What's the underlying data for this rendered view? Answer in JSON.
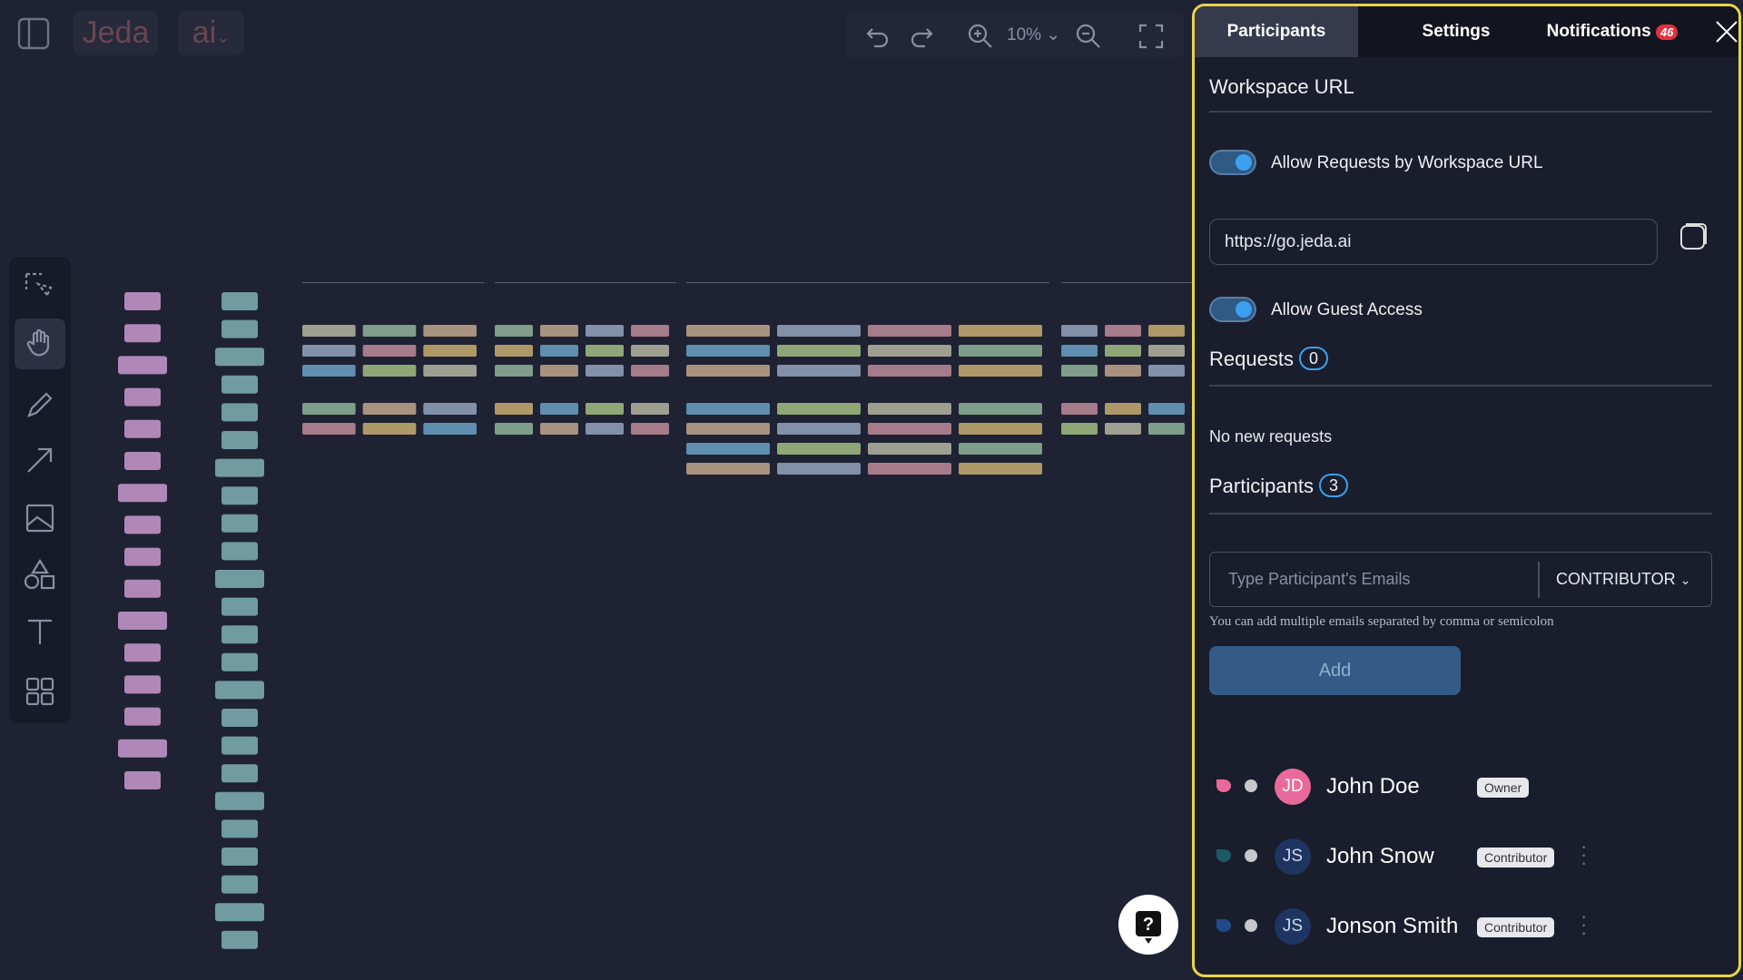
{
  "topbar": {
    "logo": "Jeda",
    "ai": "ai",
    "zoom": "10%"
  },
  "tabs": [
    "Participants",
    "Settings",
    "Notifications"
  ],
  "notifications_count": 46,
  "workspace": {
    "title": "Workspace URL",
    "allow_requests": "Allow Requests by Workspace URL",
    "url": "https://go.jeda.ai",
    "allow_guest": "Allow Guest Access"
  },
  "requests": {
    "title": "Requests",
    "count": 0,
    "empty": "No new requests"
  },
  "participants": {
    "title": "Participants",
    "count": 3,
    "input_placeholder": "Type Participant's Emails",
    "role": "CONTRIBUTOR",
    "hint": "You can add multiple emails separated by comma or semicolon",
    "add": "Add",
    "list": [
      {
        "initials": "JD",
        "name": "John Doe",
        "role": "Owner"
      },
      {
        "initials": "JS",
        "name": "John Snow",
        "role": "Contributor"
      },
      {
        "initials": "JS",
        "name": "Jonson Smith",
        "role": "Contributor"
      }
    ]
  }
}
